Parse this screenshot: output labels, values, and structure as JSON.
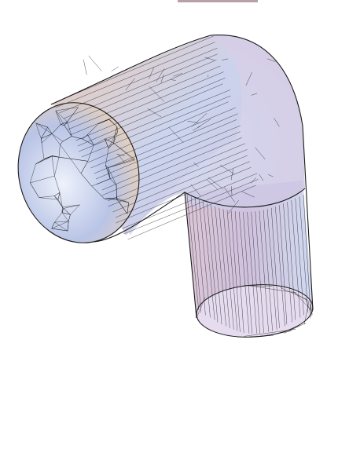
{
  "figure": {
    "kind": "3d-wireframe-mesh",
    "subject": "pipe elbow",
    "colors": {
      "background": "#ffffff",
      "mesh_line": "#1a1a1a",
      "top_strip": "#b8a0a8",
      "front_cap_light": "#eef2fb",
      "front_cap_blue": "#b9c4e6",
      "front_cap_peach": "#f4d4b0",
      "arm_peach": "#f0c9a6",
      "arm_lavender": "#cfc5e2",
      "arm_blue": "#c9d3ee",
      "down_pink": "#d4bcd0",
      "down_lilac": "#c8b7d8",
      "bottom_cap": "#e6dcef"
    }
  }
}
